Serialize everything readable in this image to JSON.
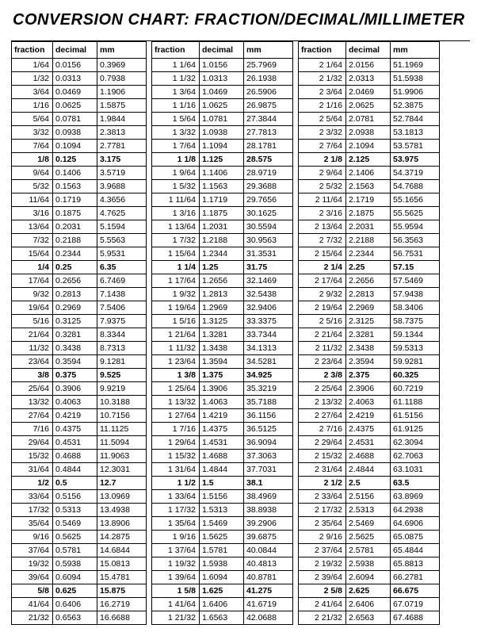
{
  "title": "CONVERSION CHART: FRACTION/DECIMAL/MILLIMETER",
  "headers": {
    "fraction": "fraction",
    "decimal": "decimal",
    "mm": "mm"
  },
  "boldEvery": 8,
  "columns": [
    [
      {
        "f": "1/64",
        "d": "0.0156",
        "m": "0.3969"
      },
      {
        "f": "1/32",
        "d": "0.0313",
        "m": "0.7938"
      },
      {
        "f": "3/64",
        "d": "0.0469",
        "m": "1.1906"
      },
      {
        "f": "1/16",
        "d": "0.0625",
        "m": "1.5875"
      },
      {
        "f": "5/64",
        "d": "0.0781",
        "m": "1.9844"
      },
      {
        "f": "3/32",
        "d": "0.0938",
        "m": "2.3813"
      },
      {
        "f": "7/64",
        "d": "0.1094",
        "m": "2.7781"
      },
      {
        "f": "1/8",
        "d": "0.125",
        "m": "3.175"
      },
      {
        "f": "9/64",
        "d": "0.1406",
        "m": "3.5719"
      },
      {
        "f": "5/32",
        "d": "0.1563",
        "m": "3.9688"
      },
      {
        "f": "11/64",
        "d": "0.1719",
        "m": "4.3656"
      },
      {
        "f": "3/16",
        "d": "0.1875",
        "m": "4.7625"
      },
      {
        "f": "13/64",
        "d": "0.2031",
        "m": "5.1594"
      },
      {
        "f": "7/32",
        "d": "0.2188",
        "m": "5.5563"
      },
      {
        "f": "15/64",
        "d": "0.2344",
        "m": "5.9531"
      },
      {
        "f": "1/4",
        "d": "0.25",
        "m": "6.35"
      },
      {
        "f": "17/64",
        "d": "0.2656",
        "m": "6.7469"
      },
      {
        "f": "9/32",
        "d": "0.2813",
        "m": "7.1438"
      },
      {
        "f": "19/64",
        "d": "0.2969",
        "m": "7.5406"
      },
      {
        "f": "5/16",
        "d": "0.3125",
        "m": "7.9375"
      },
      {
        "f": "21/64",
        "d": "0.3281",
        "m": "8.3344"
      },
      {
        "f": "11/32",
        "d": "0.3438",
        "m": "8.7313"
      },
      {
        "f": "23/64",
        "d": "0.3594",
        "m": "9.1281"
      },
      {
        "f": "3/8",
        "d": "0.375",
        "m": "9.525"
      },
      {
        "f": "25/64",
        "d": "0.3906",
        "m": "9.9219"
      },
      {
        "f": "13/32",
        "d": "0.4063",
        "m": "10.3188"
      },
      {
        "f": "27/64",
        "d": "0.4219",
        "m": "10.7156"
      },
      {
        "f": "7/16",
        "d": "0.4375",
        "m": "11.1125"
      },
      {
        "f": "29/64",
        "d": "0.4531",
        "m": "11.5094"
      },
      {
        "f": "15/32",
        "d": "0.4688",
        "m": "11.9063"
      },
      {
        "f": "31/64",
        "d": "0.4844",
        "m": "12.3031"
      },
      {
        "f": "1/2",
        "d": "0.5",
        "m": "12.7"
      },
      {
        "f": "33/64",
        "d": "0.5156",
        "m": "13.0969"
      },
      {
        "f": "17/32",
        "d": "0.5313",
        "m": "13.4938"
      },
      {
        "f": "35/64",
        "d": "0.5469",
        "m": "13.8906"
      },
      {
        "f": "9/16",
        "d": "0.5625",
        "m": "14.2875"
      },
      {
        "f": "37/64",
        "d": "0.5781",
        "m": "14.6844"
      },
      {
        "f": "19/32",
        "d": "0.5938",
        "m": "15.0813"
      },
      {
        "f": "39/64",
        "d": "0.6094",
        "m": "15.4781"
      },
      {
        "f": "5/8",
        "d": "0.625",
        "m": "15.875"
      },
      {
        "f": "41/64",
        "d": "0.6406",
        "m": "16.2719"
      },
      {
        "f": "21/32",
        "d": "0.6563",
        "m": "16.6688"
      }
    ],
    [
      {
        "f": "1  1/64",
        "d": "1.0156",
        "m": "25.7969"
      },
      {
        "f": "1  1/32",
        "d": "1.0313",
        "m": "26.1938"
      },
      {
        "f": "1  3/64",
        "d": "1.0469",
        "m": "26.5906"
      },
      {
        "f": "1  1/16",
        "d": "1.0625",
        "m": "26.9875"
      },
      {
        "f": "1  5/64",
        "d": "1.0781",
        "m": "27.3844"
      },
      {
        "f": "1  3/32",
        "d": "1.0938",
        "m": "27.7813"
      },
      {
        "f": "1  7/64",
        "d": "1.1094",
        "m": "28.1781"
      },
      {
        "f": "1 1/8",
        "d": "1.125",
        "m": "28.575"
      },
      {
        "f": "1  9/64",
        "d": "1.1406",
        "m": "28.9719"
      },
      {
        "f": "1  5/32",
        "d": "1.1563",
        "m": "29.3688"
      },
      {
        "f": "1 11/64",
        "d": "1.1719",
        "m": "29.7656"
      },
      {
        "f": "1  3/16",
        "d": "1.1875",
        "m": "30.1625"
      },
      {
        "f": "1 13/64",
        "d": "1.2031",
        "m": "30.5594"
      },
      {
        "f": "1  7/32",
        "d": "1.2188",
        "m": "30.9563"
      },
      {
        "f": "1 15/64",
        "d": "1.2344",
        "m": "31.3531"
      },
      {
        "f": "1 1/4",
        "d": "1.25",
        "m": "31.75"
      },
      {
        "f": "1 17/64",
        "d": "1.2656",
        "m": "32.1469"
      },
      {
        "f": "1  9/32",
        "d": "1.2813",
        "m": "32.5438"
      },
      {
        "f": "1 19/64",
        "d": "1.2969",
        "m": "32.9406"
      },
      {
        "f": "1  5/16",
        "d": "1.3125",
        "m": "33.3375"
      },
      {
        "f": "1 21/64",
        "d": "1.3281",
        "m": "33.7344"
      },
      {
        "f": "1 11/32",
        "d": "1.3438",
        "m": "34.1313"
      },
      {
        "f": "1 23/64",
        "d": "1.3594",
        "m": "34.5281"
      },
      {
        "f": "1 3/8",
        "d": "1.375",
        "m": "34.925"
      },
      {
        "f": "1 25/64",
        "d": "1.3906",
        "m": "35.3219"
      },
      {
        "f": "1 13/32",
        "d": "1.4063",
        "m": "35.7188"
      },
      {
        "f": "1 27/64",
        "d": "1.4219",
        "m": "36.1156"
      },
      {
        "f": "1  7/16",
        "d": "1.4375",
        "m": "36.5125"
      },
      {
        "f": "1 29/64",
        "d": "1.4531",
        "m": "36.9094"
      },
      {
        "f": "1 15/32",
        "d": "1.4688",
        "m": "37.3063"
      },
      {
        "f": "1 31/64",
        "d": "1.4844",
        "m": "37.7031"
      },
      {
        "f": "1 1/2",
        "d": "1.5",
        "m": "38.1"
      },
      {
        "f": "1 33/64",
        "d": "1.5156",
        "m": "38.4969"
      },
      {
        "f": "1 17/32",
        "d": "1.5313",
        "m": "38.8938"
      },
      {
        "f": "1 35/64",
        "d": "1.5469",
        "m": "39.2906"
      },
      {
        "f": "1  9/16",
        "d": "1.5625",
        "m": "39.6875"
      },
      {
        "f": "1 37/64",
        "d": "1.5781",
        "m": "40.0844"
      },
      {
        "f": "1 19/32",
        "d": "1.5938",
        "m": "40.4813"
      },
      {
        "f": "1 39/64",
        "d": "1.6094",
        "m": "40.8781"
      },
      {
        "f": "1 5/8",
        "d": "1.625",
        "m": "41.275"
      },
      {
        "f": "1 41/64",
        "d": "1.6406",
        "m": "41.6719"
      },
      {
        "f": "1 21/32",
        "d": "1.6563",
        "m": "42.0688"
      }
    ],
    [
      {
        "f": "2  1/64",
        "d": "2.0156",
        "m": "51.1969"
      },
      {
        "f": "2  1/32",
        "d": "2.0313",
        "m": "51.5938"
      },
      {
        "f": "2  3/64",
        "d": "2.0469",
        "m": "51.9906"
      },
      {
        "f": "2  1/16",
        "d": "2.0625",
        "m": "52.3875"
      },
      {
        "f": "2  5/64",
        "d": "2.0781",
        "m": "52.7844"
      },
      {
        "f": "2  3/32",
        "d": "2.0938",
        "m": "53.1813"
      },
      {
        "f": "2  7/64",
        "d": "2.1094",
        "m": "53.5781"
      },
      {
        "f": "2 1/8",
        "d": "2.125",
        "m": "53.975"
      },
      {
        "f": "2  9/64",
        "d": "2.1406",
        "m": "54.3719"
      },
      {
        "f": "2  5/32",
        "d": "2.1563",
        "m": "54.7688"
      },
      {
        "f": "2 11/64",
        "d": "2.1719",
        "m": "55.1656"
      },
      {
        "f": "2  3/16",
        "d": "2.1875",
        "m": "55.5625"
      },
      {
        "f": "2 13/64",
        "d": "2.2031",
        "m": "55.9594"
      },
      {
        "f": "2  7/32",
        "d": "2.2188",
        "m": "56.3563"
      },
      {
        "f": "2 15/64",
        "d": "2.2344",
        "m": "56.7531"
      },
      {
        "f": "2 1/4",
        "d": "2.25",
        "m": "57.15"
      },
      {
        "f": "2 17/64",
        "d": "2.2656",
        "m": "57.5469"
      },
      {
        "f": "2  9/32",
        "d": "2.2813",
        "m": "57.9438"
      },
      {
        "f": "2 19/64",
        "d": "2.2969",
        "m": "58.3406"
      },
      {
        "f": "2  5/16",
        "d": "2.3125",
        "m": "58.7375"
      },
      {
        "f": "2 21/64",
        "d": "2.3281",
        "m": "59.1344"
      },
      {
        "f": "2 11/32",
        "d": "2.3438",
        "m": "59.5313"
      },
      {
        "f": "2 23/64",
        "d": "2.3594",
        "m": "59.9281"
      },
      {
        "f": "2 3/8",
        "d": "2.375",
        "m": "60.325"
      },
      {
        "f": "2 25/64",
        "d": "2.3906",
        "m": "60.7219"
      },
      {
        "f": "2 13/32",
        "d": "2.4063",
        "m": "61.1188"
      },
      {
        "f": "2 27/64",
        "d": "2.4219",
        "m": "61.5156"
      },
      {
        "f": "2  7/16",
        "d": "2.4375",
        "m": "61.9125"
      },
      {
        "f": "2 29/64",
        "d": "2.4531",
        "m": "62.3094"
      },
      {
        "f": "2 15/32",
        "d": "2.4688",
        "m": "62.7063"
      },
      {
        "f": "2 31/64",
        "d": "2.4844",
        "m": "63.1031"
      },
      {
        "f": "2 1/2",
        "d": "2.5",
        "m": "63.5"
      },
      {
        "f": "2 33/64",
        "d": "2.5156",
        "m": "63.8969"
      },
      {
        "f": "2 17/32",
        "d": "2.5313",
        "m": "64.2938"
      },
      {
        "f": "2 35/64",
        "d": "2.5469",
        "m": "64.6906"
      },
      {
        "f": "2  9/16",
        "d": "2.5625",
        "m": "65.0875"
      },
      {
        "f": "2 37/64",
        "d": "2.5781",
        "m": "65.4844"
      },
      {
        "f": "2 19/32",
        "d": "2.5938",
        "m": "65.8813"
      },
      {
        "f": "2 39/64",
        "d": "2.6094",
        "m": "66.2781"
      },
      {
        "f": "2 5/8",
        "d": "2.625",
        "m": "66.675"
      },
      {
        "f": "2 41/64",
        "d": "2.6406",
        "m": "67.0719"
      },
      {
        "f": "2 21/32",
        "d": "2.6563",
        "m": "67.4688"
      }
    ]
  ]
}
